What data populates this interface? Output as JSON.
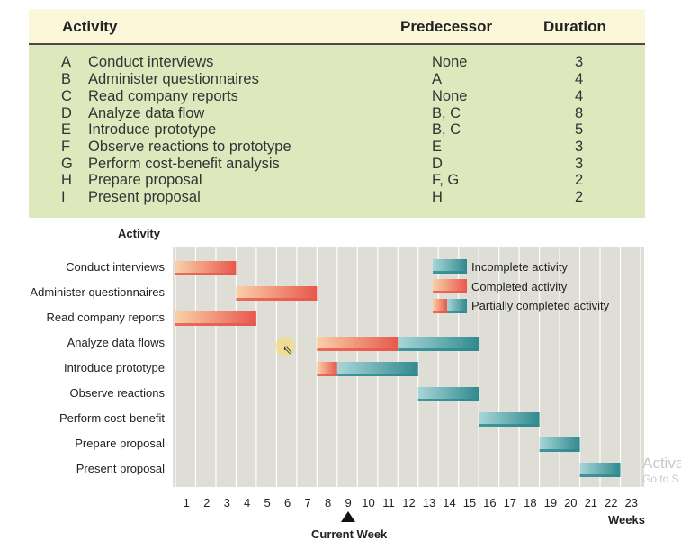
{
  "table": {
    "headers": {
      "activity": "Activity",
      "predecessor": "Predecessor",
      "duration": "Duration"
    },
    "rows": [
      {
        "letter": "A",
        "name": "Conduct interviews",
        "predecessor": "None",
        "duration": "3"
      },
      {
        "letter": "B",
        "name": "Administer questionnaires",
        "predecessor": "A",
        "duration": "4"
      },
      {
        "letter": "C",
        "name": "Read company reports",
        "predecessor": "None",
        "duration": "4"
      },
      {
        "letter": "D",
        "name": "Analyze data flow",
        "predecessor": "B, C",
        "duration": "8"
      },
      {
        "letter": "E",
        "name": "Introduce prototype",
        "predecessor": "B, C",
        "duration": "5"
      },
      {
        "letter": "F",
        "name": "Observe reactions to prototype",
        "predecessor": "E",
        "duration": "3"
      },
      {
        "letter": "G",
        "name": "Perform cost-benefit analysis",
        "predecessor": "D",
        "duration": "3"
      },
      {
        "letter": "H",
        "name": "Prepare proposal",
        "predecessor": "F, G",
        "duration": "2"
      },
      {
        "letter": "I",
        "name": "Present proposal",
        "predecessor": "H",
        "duration": "2"
      }
    ]
  },
  "chart_data": {
    "type": "bar",
    "orientation": "horizontal-gantt",
    "title": "Activity",
    "xlabel": "Weeks",
    "xlim": [
      0,
      23
    ],
    "x_ticks": [
      1,
      2,
      3,
      4,
      5,
      6,
      7,
      8,
      9,
      10,
      11,
      12,
      13,
      14,
      15,
      16,
      17,
      18,
      19,
      20,
      21,
      22,
      23
    ],
    "grid": "vertical",
    "current_week": 9,
    "current_week_label": "Current Week",
    "categories": [
      "Conduct interviews",
      "Administer questionnaires",
      "Read company reports",
      "Analyze data flows",
      "Introduce prototype",
      "Observe reactions",
      "Perform cost-benefit",
      "Prepare proposal",
      "Present proposal"
    ],
    "tasks": [
      {
        "start": 0,
        "end": 3,
        "completed_until": 3
      },
      {
        "start": 3,
        "end": 7,
        "completed_until": 7
      },
      {
        "start": 0,
        "end": 4,
        "completed_until": 4
      },
      {
        "start": 7,
        "end": 15,
        "completed_until": 11
      },
      {
        "start": 7,
        "end": 12,
        "completed_until": 8
      },
      {
        "start": 12,
        "end": 15,
        "completed_until": 12
      },
      {
        "start": 15,
        "end": 18,
        "completed_until": 15
      },
      {
        "start": 18,
        "end": 20,
        "completed_until": 18
      },
      {
        "start": 20,
        "end": 22,
        "completed_until": 20
      }
    ],
    "legend": {
      "position": "top-right",
      "entries": [
        {
          "name": "Incomplete activity",
          "kind": "incomplete"
        },
        {
          "name": "Completed activity",
          "kind": "completed"
        },
        {
          "name": "Partially completed activity",
          "kind": "partial"
        }
      ]
    },
    "colors": {
      "completed": "#e8584c",
      "completed_light": "#f9d0a8",
      "incomplete": "#2f8a8f",
      "incomplete_light": "#a9d6d8",
      "plot_background": "#deddd6",
      "grid": "#ffffff"
    }
  },
  "watermark": {
    "line1": "Activa",
    "line2": "Go to S"
  }
}
